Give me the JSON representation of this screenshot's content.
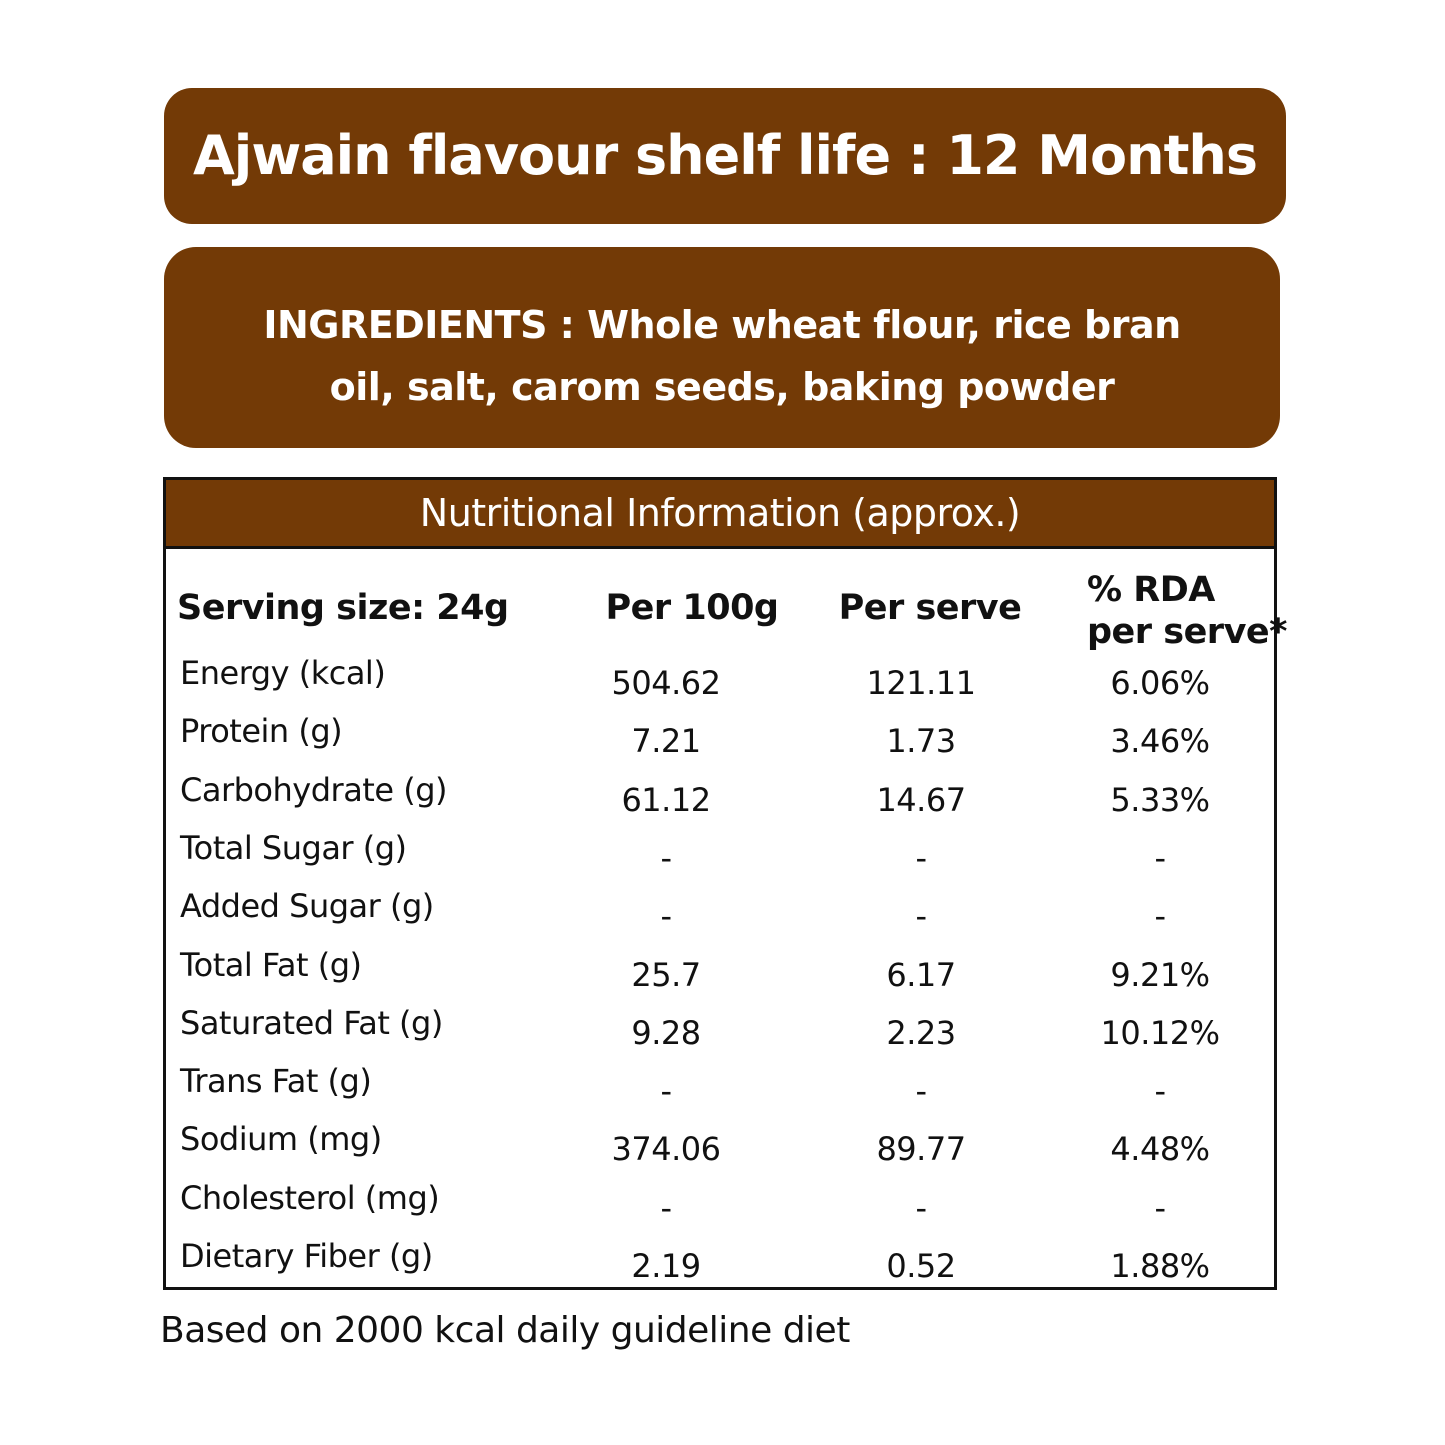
{
  "banner": {
    "title": "Ajwain flavour shelf life : 12 Months"
  },
  "ingredients": {
    "lines": [
      "INGREDIENTS : Whole wheat flour, rice bran",
      "oil, salt, carom seeds, baking powder"
    ]
  },
  "table": {
    "title": "Nutritional Information (approx.)",
    "headers": [
      [
        "Serving size: 24g"
      ],
      [
        "Per 100g"
      ],
      [
        "Per serve"
      ],
      [
        "% RDA",
        "per serve*"
      ]
    ],
    "rows": [
      [
        "Energy (kcal)",
        "504.62",
        "121.11",
        "6.06%"
      ],
      [
        "Protein (g)",
        "7.21",
        "1.73",
        "3.46%"
      ],
      [
        "Carbohydrate (g)",
        "61.12",
        "14.67",
        "5.33%"
      ],
      [
        "Total Sugar (g)",
        "-",
        "-",
        "-"
      ],
      [
        "Added Sugar (g)",
        "-",
        "-",
        "-"
      ],
      [
        "Total Fat (g)",
        "25.7",
        "6.17",
        "9.21%"
      ],
      [
        "Saturated Fat (g)",
        "9.28",
        "2.23",
        "10.12%"
      ],
      [
        "Trans Fat (g)",
        "-",
        "-",
        "-"
      ],
      [
        "Sodium (mg)",
        "374.06",
        "89.77",
        "4.48%"
      ],
      [
        "Cholesterol (mg)",
        "-",
        "-",
        "-"
      ],
      [
        "Dietary Fiber (g)",
        "2.19",
        "0.52",
        "1.88%"
      ]
    ]
  },
  "footnote": "Based on 2000 kcal daily guideline diet"
}
